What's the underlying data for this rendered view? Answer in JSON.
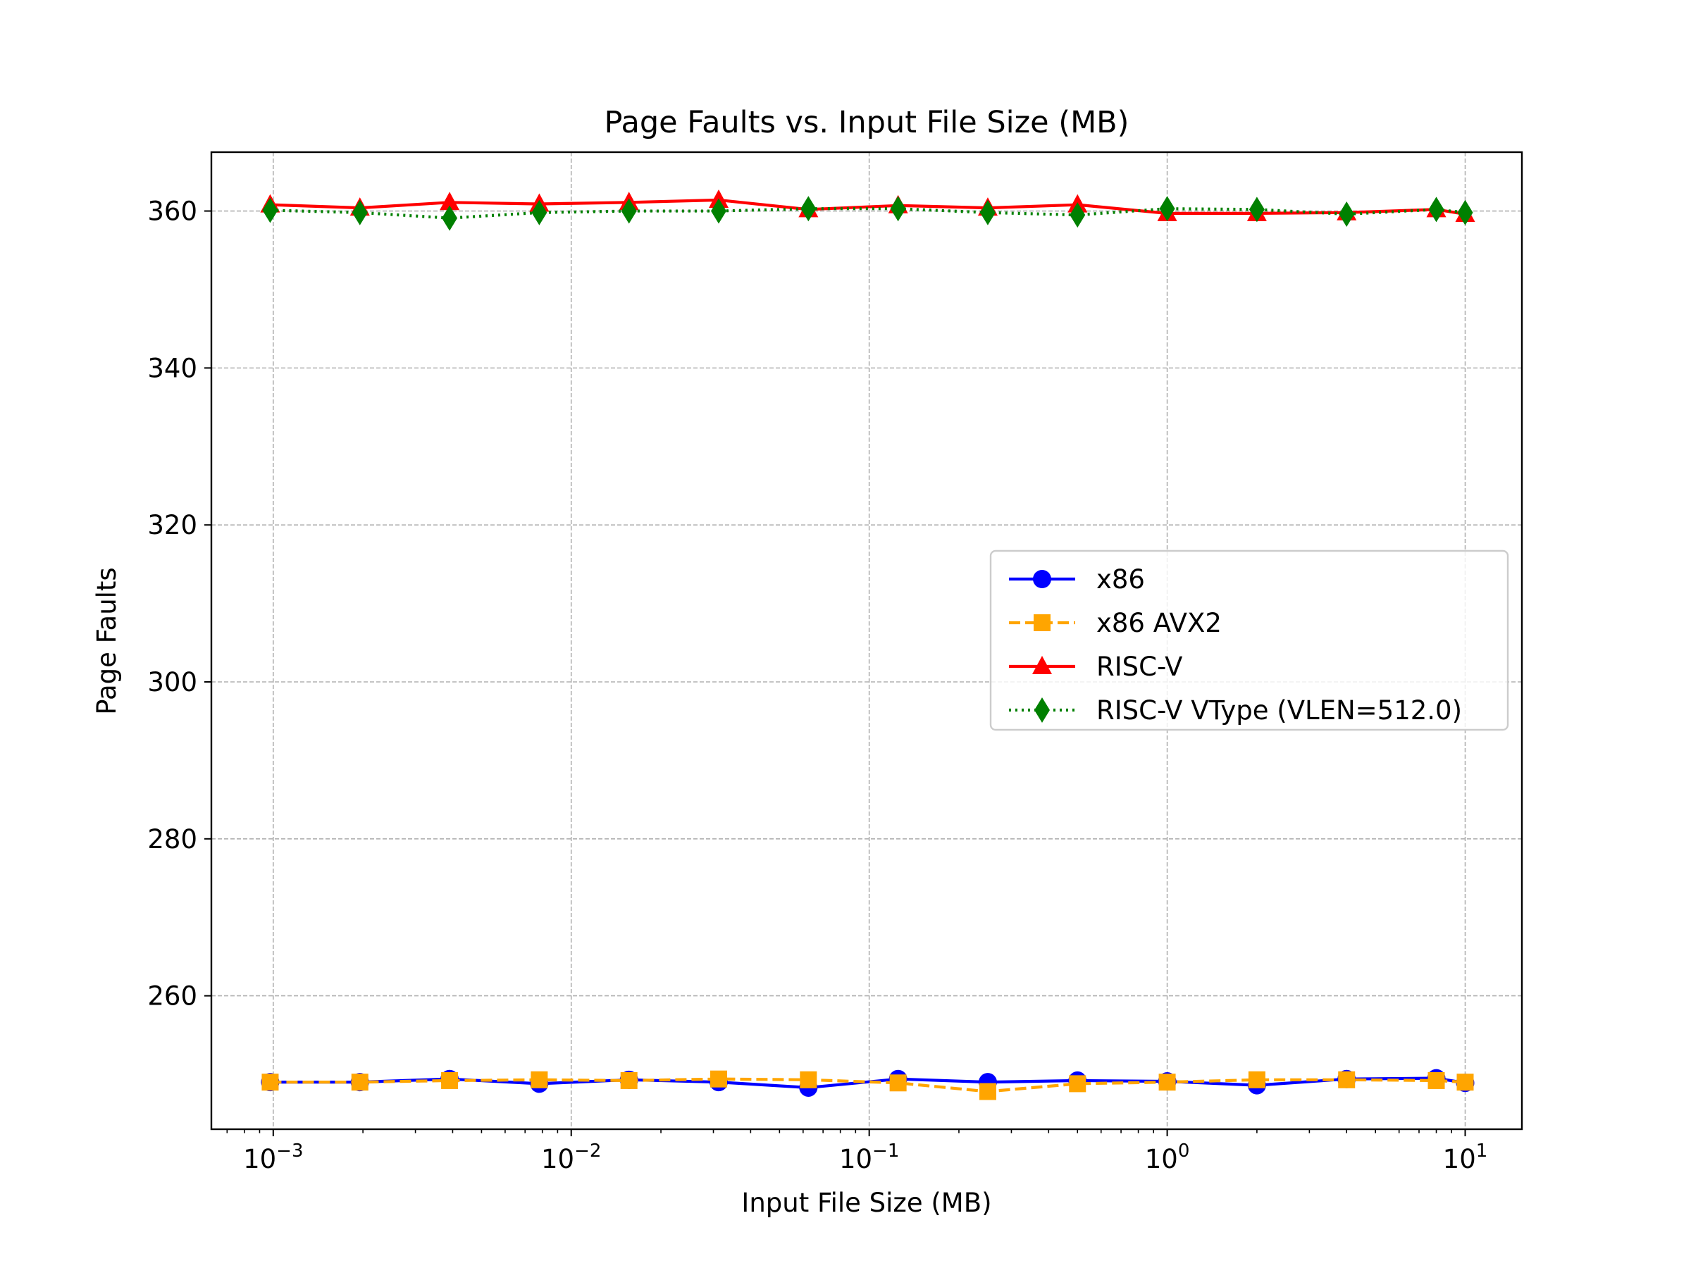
{
  "chart_data": {
    "type": "line",
    "title": "Page Faults vs. Input File Size (MB)",
    "xlabel": "Input File Size (MB)",
    "ylabel": "Page Faults",
    "xscale": "log",
    "xlim": [
      0.00062,
      15.5
    ],
    "ylim": [
      243,
      367.5
    ],
    "grid": true,
    "legend_position": "center-right",
    "x": [
      0.0009765625,
      0.001953125,
      0.00390625,
      0.0078125,
      0.015625,
      0.03125,
      0.0625,
      0.125,
      0.25,
      0.5,
      1,
      2,
      4,
      8,
      10
    ],
    "x_ticks": [
      {
        "value": 0.001,
        "base": "10",
        "exp": "−3"
      },
      {
        "value": 0.01,
        "base": "10",
        "exp": "−2"
      },
      {
        "value": 0.1,
        "base": "10",
        "exp": "−1"
      },
      {
        "value": 1,
        "base": "10",
        "exp": "0"
      },
      {
        "value": 10,
        "base": "10",
        "exp": "1"
      }
    ],
    "y_ticks": [
      {
        "value": 260,
        "label": "260"
      },
      {
        "value": 280,
        "label": "280"
      },
      {
        "value": 300,
        "label": "300"
      },
      {
        "value": 320,
        "label": "320"
      },
      {
        "value": 340,
        "label": "340"
      },
      {
        "value": 360,
        "label": "360"
      }
    ],
    "series": [
      {
        "name": "x86",
        "color": "#0000ff",
        "marker": "circle",
        "linestyle": "solid",
        "values": [
          249,
          249,
          249.4,
          248.8,
          249.3,
          249,
          248.3,
          249.4,
          249,
          249.2,
          249.1,
          248.6,
          249.4,
          249.5,
          248.9
        ]
      },
      {
        "name": "x86 AVX2",
        "color": "#ffa500",
        "marker": "square",
        "linestyle": "dashed",
        "values": [
          249,
          249,
          249.2,
          249.3,
          249.2,
          249.4,
          249.3,
          248.9,
          247.8,
          248.8,
          249,
          249.3,
          249.3,
          249.2,
          249
        ]
      },
      {
        "name": "RISC-V",
        "color": "#ff0000",
        "marker": "triangle",
        "linestyle": "solid",
        "values": [
          360.8,
          360.4,
          361.1,
          360.9,
          361.1,
          361.4,
          360.2,
          360.7,
          360.4,
          360.8,
          359.7,
          359.7,
          359.8,
          360.2,
          359.6
        ]
      },
      {
        "name": "RISC-V VType (VLEN=512.0)",
        "color": "#008000",
        "marker": "diamond",
        "linestyle": "dotted",
        "values": [
          360.1,
          359.8,
          359.1,
          359.8,
          360,
          360,
          360.3,
          360.3,
          359.8,
          359.5,
          360.3,
          360.2,
          359.6,
          360.2,
          359.8
        ]
      }
    ]
  }
}
